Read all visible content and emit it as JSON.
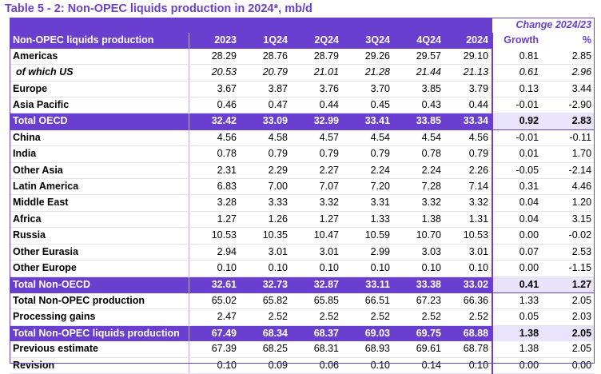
{
  "title": "Table 5 - 2: Non-OPEC liquids production in 2024*, mb/d",
  "header": {
    "change_label": "Change 2024/23",
    "row_label": "Non-OPEC liquids production",
    "columns": [
      "2023",
      "1Q24",
      "2Q24",
      "3Q24",
      "4Q24",
      "2024",
      "Growth",
      "%"
    ]
  },
  "rows": [
    {
      "label": "Americas",
      "values": [
        "28.29",
        "28.76",
        "28.79",
        "29.26",
        "29.57",
        "29.10",
        "0.81",
        "2.85"
      ],
      "style": "body"
    },
    {
      "label": "of which US",
      "values": [
        "20.53",
        "20.79",
        "21.01",
        "21.28",
        "21.44",
        "21.13",
        "0.61",
        "2.96"
      ],
      "style": "italic"
    },
    {
      "label": "Europe",
      "values": [
        "3.67",
        "3.87",
        "3.76",
        "3.70",
        "3.85",
        "3.79",
        "0.13",
        "3.44"
      ],
      "style": "body"
    },
    {
      "label": "Asia Pacific",
      "values": [
        "0.46",
        "0.47",
        "0.44",
        "0.45",
        "0.43",
        "0.44",
        "-0.01",
        "-2.90"
      ],
      "style": "body"
    },
    {
      "label": "Total OECD",
      "values": [
        "32.42",
        "33.09",
        "32.99",
        "33.41",
        "33.85",
        "33.34",
        "0.92",
        "2.83"
      ],
      "style": "total"
    },
    {
      "label": "China",
      "values": [
        "4.56",
        "4.58",
        "4.57",
        "4.54",
        "4.54",
        "4.56",
        "-0.01",
        "-0.11"
      ],
      "style": "body"
    },
    {
      "label": "India",
      "values": [
        "0.78",
        "0.79",
        "0.79",
        "0.79",
        "0.78",
        "0.79",
        "0.01",
        "1.70"
      ],
      "style": "body"
    },
    {
      "label": "Other Asia",
      "values": [
        "2.31",
        "2.29",
        "2.27",
        "2.24",
        "2.24",
        "2.26",
        "-0.05",
        "-2.14"
      ],
      "style": "body"
    },
    {
      "label": "Latin America",
      "values": [
        "6.83",
        "7.00",
        "7.07",
        "7.20",
        "7.28",
        "7.14",
        "0.31",
        "4.46"
      ],
      "style": "body"
    },
    {
      "label": "Middle East",
      "values": [
        "3.28",
        "3.33",
        "3.32",
        "3.31",
        "3.32",
        "3.32",
        "0.04",
        "1.20"
      ],
      "style": "body"
    },
    {
      "label": "Africa",
      "values": [
        "1.27",
        "1.26",
        "1.27",
        "1.33",
        "1.38",
        "1.31",
        "0.04",
        "3.15"
      ],
      "style": "body"
    },
    {
      "label": "Russia",
      "values": [
        "10.53",
        "10.35",
        "10.47",
        "10.59",
        "10.70",
        "10.53",
        "0.00",
        "-0.02"
      ],
      "style": "body"
    },
    {
      "label": "Other Eurasia",
      "values": [
        "2.94",
        "3.01",
        "3.01",
        "2.99",
        "3.03",
        "3.01",
        "0.07",
        "2.53"
      ],
      "style": "body"
    },
    {
      "label": "Other Europe",
      "values": [
        "0.10",
        "0.10",
        "0.10",
        "0.10",
        "0.10",
        "0.10",
        "0.00",
        "-1.15"
      ],
      "style": "body"
    },
    {
      "label": "Total Non-OECD",
      "values": [
        "32.61",
        "32.73",
        "32.87",
        "33.11",
        "33.38",
        "33.02",
        "0.41",
        "1.27"
      ],
      "style": "total"
    },
    {
      "label": "Total Non-OPEC production",
      "values": [
        "65.02",
        "65.82",
        "65.85",
        "66.51",
        "67.23",
        "66.36",
        "1.33",
        "2.05"
      ],
      "style": "body"
    },
    {
      "label": "Processing gains",
      "values": [
        "2.47",
        "2.52",
        "2.52",
        "2.52",
        "2.52",
        "2.52",
        "0.05",
        "2.03"
      ],
      "style": "body"
    },
    {
      "label": "Total Non-OPEC liquids production",
      "values": [
        "67.49",
        "68.34",
        "68.37",
        "69.03",
        "69.75",
        "68.88",
        "1.38",
        "2.05"
      ],
      "style": "total"
    },
    {
      "label": "Previous estimate",
      "values": [
        "67.39",
        "68.25",
        "68.31",
        "68.93",
        "69.61",
        "68.78",
        "1.38",
        "2.05"
      ],
      "style": "body"
    },
    {
      "label": "Revision",
      "values": [
        "0.10",
        "0.09",
        "0.06",
        "0.10",
        "0.14",
        "0.10",
        "0.00",
        "0.00"
      ],
      "style": "body"
    }
  ],
  "colors": {
    "accent": "#6a3fd0",
    "total_light": "#e9e3fb"
  }
}
